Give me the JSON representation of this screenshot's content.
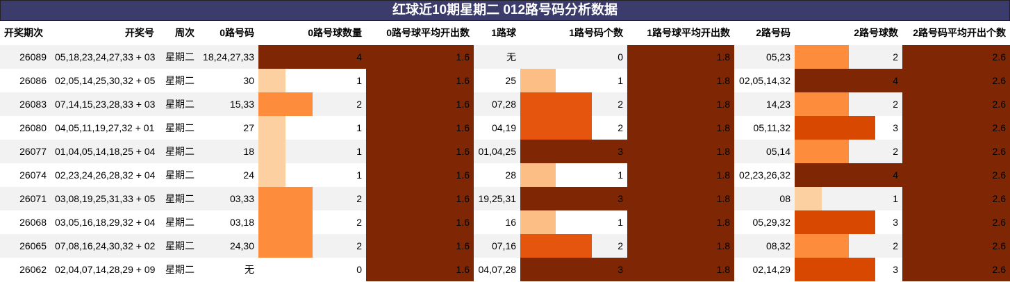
{
  "header": {
    "title": "红球近10期星期二 012路号码分析数据"
  },
  "table": {
    "columns": [
      "开奖期次",
      "开奖号",
      "周次",
      "0路号码",
      "0路号球数量",
      "0路号球平均开出数",
      "1路球",
      "1路号码个数",
      "1路号球平均开出数",
      "2路号码",
      "2路号球数",
      "2路号码平均开出个数"
    ],
    "rows": [
      [
        "26089",
        "05,18,23,24,27,33 + 03",
        "星期二",
        "18,24,27,33",
        4,
        1.6,
        "无",
        0,
        1.8,
        "05,23",
        2,
        2.6
      ],
      [
        "26086",
        "02,05,14,25,30,32 + 05",
        "星期二",
        "30",
        1,
        1.6,
        "25",
        1,
        1.8,
        "02,05,14,32",
        4,
        2.6
      ],
      [
        "26083",
        "07,14,15,23,28,33 + 03",
        "星期二",
        "15,33",
        2,
        1.6,
        "07,28",
        2,
        1.8,
        "14,23",
        2,
        2.6
      ],
      [
        "26080",
        "04,05,11,19,27,32 + 01",
        "星期二",
        "27",
        1,
        1.6,
        "04,19",
        2,
        1.8,
        "05,11,32",
        3,
        2.6
      ],
      [
        "26077",
        "01,04,05,14,18,25 + 04",
        "星期二",
        "18",
        1,
        1.6,
        "01,04,25",
        3,
        1.8,
        "05,14",
        2,
        2.6
      ],
      [
        "26074",
        "02,23,24,26,28,32 + 04",
        "星期二",
        "24",
        1,
        1.6,
        "28",
        1,
        1.8,
        "02,23,26,32",
        4,
        2.6
      ],
      [
        "26071",
        "03,08,19,25,31,33 + 05",
        "星期二",
        "03,33",
        2,
        1.6,
        "19,25,31",
        3,
        1.8,
        "08",
        1,
        2.6
      ],
      [
        "26068",
        "03,05,16,18,29,32 + 04",
        "星期二",
        "03,18",
        2,
        1.6,
        "16",
        1,
        1.8,
        "05,29,32",
        3,
        2.6
      ],
      [
        "26065",
        "07,08,16,24,30,32 + 02",
        "星期二",
        "24,30",
        2,
        1.6,
        "07,16",
        2,
        1.8,
        "08,32",
        2,
        2.6
      ],
      [
        "26062",
        "02,04,07,14,28,29 + 09",
        "星期二",
        "无",
        0,
        1.6,
        "04,07,28",
        3,
        1.8,
        "02,14,29",
        3,
        2.6
      ]
    ]
  }
}
